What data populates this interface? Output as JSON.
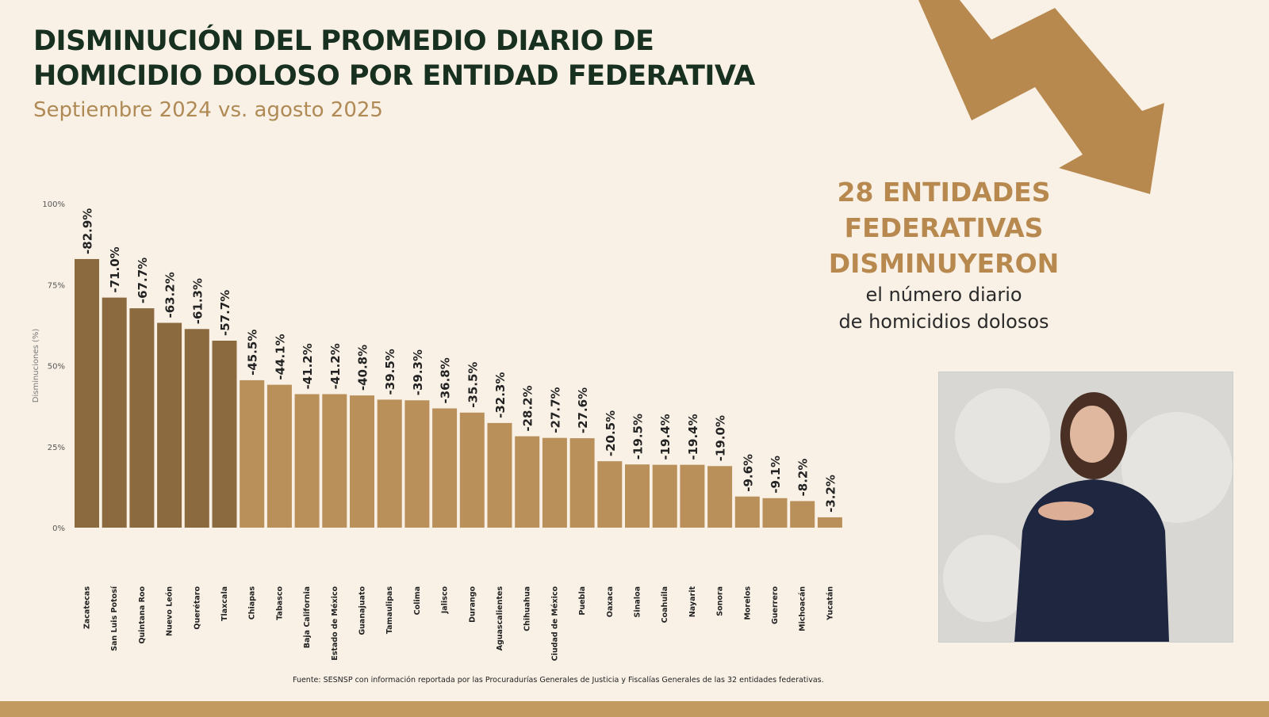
{
  "header": {
    "title_line1": "DISMINUCIÓN DEL PROMEDIO DIARIO DE",
    "title_line2": "HOMICIDIO DOLOSO POR ENTIDAD FEDERATIVA",
    "subtitle": "Septiembre 2024 vs. agosto 2025"
  },
  "callout": {
    "line1": "28 ENTIDADES",
    "line2": "FEDERATIVAS",
    "line3": "DISMINUYERON",
    "line4": "el número diario",
    "line5": "de homicidios dolosos"
  },
  "source": "Fuente: SESNSP con información reportada por las Procuradurías Generales de Justicia y Fiscalías Generales de las 32 entidades federativas.",
  "colors": {
    "dark_bar": "#8b6a3f",
    "light_bar": "#b98f5a",
    "title": "#17301f",
    "accent": "#b8894f"
  },
  "chart_data": {
    "type": "bar",
    "ylabel": "Disminuciones (%)",
    "ylim": [
      0,
      100
    ],
    "yticks": [
      "0%",
      "25%",
      "50%",
      "75%",
      "100%"
    ],
    "grid": false,
    "categories": [
      "Zacatecas",
      "San Luis Potosí",
      "Quintana Roo",
      "Nuevo León",
      "Querétaro",
      "Tlaxcala",
      "Chiapas",
      "Tabasco",
      "Baja California",
      "Estado de México",
      "Guanajuato",
      "Tamaulipas",
      "Colima",
      "Jalisco",
      "Durango",
      "Aguascalientes",
      "Chihuahua",
      "Ciudad de México",
      "Puebla",
      "Oaxaca",
      "Sinaloa",
      "Coahuila",
      "Nayarit",
      "Sonora",
      "Morelos",
      "Guerrero",
      "Michoacán",
      "Yucatán"
    ],
    "values": [
      82.9,
      71.0,
      67.7,
      63.2,
      61.3,
      57.7,
      45.5,
      44.1,
      41.2,
      41.2,
      40.8,
      39.5,
      39.3,
      36.8,
      35.5,
      32.3,
      28.2,
      27.7,
      27.6,
      20.5,
      19.5,
      19.4,
      19.4,
      19.0,
      9.6,
      9.1,
      8.2,
      3.2
    ],
    "labels": [
      "-82.9%",
      "-71.0%",
      "-67.7%",
      "-63.2%",
      "-61.3%",
      "-57.7%",
      "-45.5%",
      "-44.1%",
      "-41.2%",
      "-41.2%",
      "-40.8%",
      "-39.5%",
      "-39.3%",
      "-36.8%",
      "-35.5%",
      "-32.3%",
      "-28.2%",
      "-27.7%",
      "-27.6%",
      "-20.5%",
      "-19.5%",
      "-19.4%",
      "-19.4%",
      "-19.0%",
      "-9.6%",
      "-9.1%",
      "-8.2%",
      "-3.2%"
    ],
    "highlighted_count": 6
  }
}
